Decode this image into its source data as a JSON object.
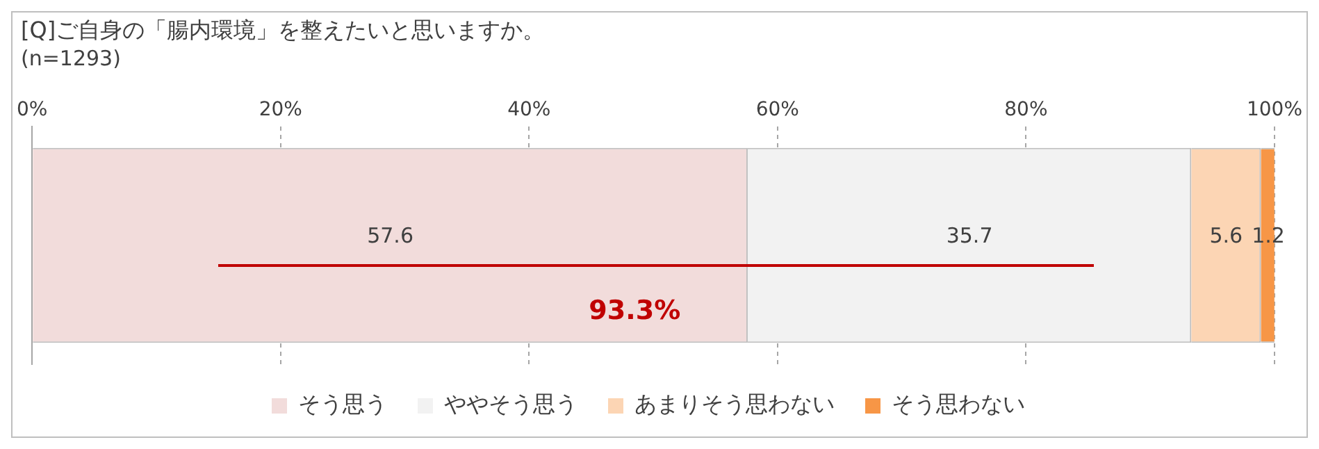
{
  "chart_data": {
    "type": "bar",
    "orientation": "horizontal",
    "stacked": true,
    "title": "[Q]ご自身の「腸内環境」を整えたいと思いますか。",
    "subtitle": "(n=1293)",
    "categories": [
      null
    ],
    "series": [
      {
        "name": "そう思う",
        "color": "#f2dcdb",
        "values": [
          57.6
        ]
      },
      {
        "name": "ややそう思う",
        "color": "#f2f2f2",
        "values": [
          35.7
        ]
      },
      {
        "name": "あまりそう思わない",
        "color": "#fcd5b4",
        "values": [
          5.6
        ]
      },
      {
        "name": "そう思わない",
        "color": "#f79646",
        "values": [
          1.2
        ]
      }
    ],
    "xlim": [
      0,
      100
    ],
    "xticks": [
      {
        "value": 0,
        "label": "0%"
      },
      {
        "value": 20,
        "label": "20%"
      },
      {
        "value": 40,
        "label": "40%"
      },
      {
        "value": 60,
        "label": "60%"
      },
      {
        "value": 80,
        "label": "80%"
      },
      {
        "value": 100,
        "label": "100%"
      }
    ],
    "grid": "x",
    "legend": "bottom",
    "data_labels": true,
    "annotations": [
      "93.3%"
    ]
  }
}
